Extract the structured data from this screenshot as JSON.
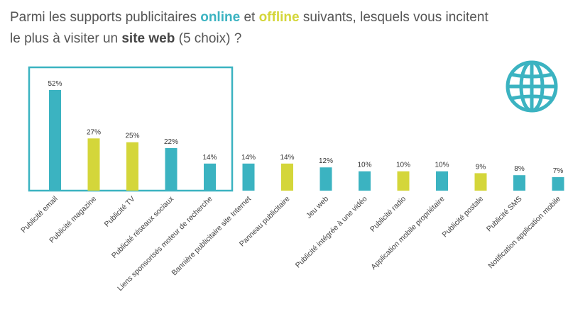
{
  "title": {
    "p1": "Parmi les supports publicitaires ",
    "online": "online",
    "p2": " et ",
    "offline": "offline",
    "p3": " suivants, lesquels vous incitent le plus à visiter un ",
    "site_web": "site web",
    "p4": " (5 choix) ?"
  },
  "colors": {
    "online": "#3bb3c1",
    "offline": "#d4d63a",
    "highlight_box": "#3bb3c1"
  },
  "icon": "globe-icon",
  "chart_data": {
    "type": "bar",
    "title": "",
    "xlabel": "",
    "ylabel": "",
    "ylim": [
      0,
      60
    ],
    "grid": false,
    "highlighted_top": 5,
    "categories": [
      "Publicité email",
      "Publicité magazine",
      "Publicité TV",
      "Publicité réseaux sociaux",
      "Liens sponsorisés moteur de recherche",
      "Bannière publicitaire site Internet",
      "Panneau publicitaire",
      "Jeu web",
      "Publicité intégrée à une vidéo",
      "Publicité radio",
      "Application mobile propriétaire",
      "Publicité postale",
      "Publicité SMS",
      "Notification application mobile"
    ],
    "values": [
      52,
      27,
      25,
      22,
      14,
      14,
      14,
      12,
      10,
      10,
      10,
      9,
      8,
      7
    ],
    "labels": [
      "52%",
      "27%",
      "25%",
      "22%",
      "14%",
      "14%",
      "14%",
      "12%",
      "10%",
      "10%",
      "10%",
      "9%",
      "8%",
      "7%"
    ],
    "kind": [
      "online",
      "offline",
      "offline",
      "online",
      "online",
      "online",
      "offline",
      "online",
      "online",
      "offline",
      "online",
      "offline",
      "online",
      "online"
    ]
  }
}
